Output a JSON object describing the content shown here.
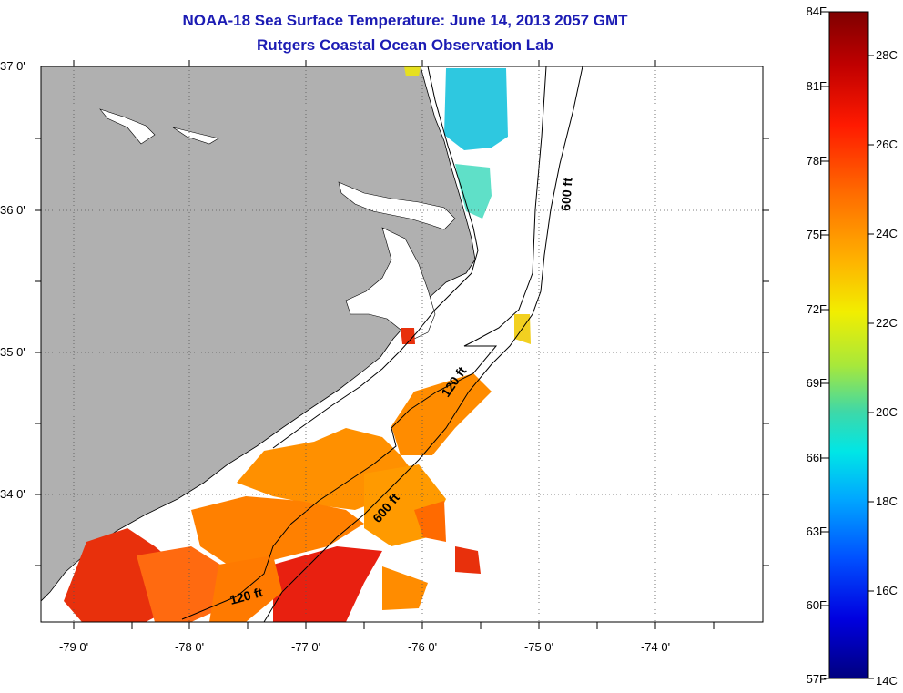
{
  "title": "NOAA-18 Sea Surface Temperature:  June 14, 2013 2057 GMT",
  "subtitle": "Rutgers Coastal Ocean Observation Lab",
  "axes": {
    "lat_labels": [
      "37 0'",
      "36 0'",
      "35 0'",
      "34 0'"
    ],
    "lon_labels": [
      "-79 0'",
      "-78 0'",
      "-77 0'",
      "-76 0'",
      "-75 0'",
      "-74 0'"
    ]
  },
  "contours": {
    "shelf_120": "120 ft",
    "slope_600": "600 ft"
  },
  "colorbar": {
    "fahrenheit": [
      "84F",
      "81F",
      "78F",
      "75F",
      "72F",
      "69F",
      "66F",
      "63F",
      "60F",
      "57F"
    ],
    "celsius": [
      "28C",
      "26C",
      "24C",
      "22C",
      "20C",
      "18C",
      "16C",
      "14C"
    ],
    "colors": [
      "#7f0000",
      "#c00000",
      "#ff1a00",
      "#ff6a00",
      "#ffb000",
      "#f2ee00",
      "#a8e83a",
      "#3ed8a8",
      "#00e6e6",
      "#00a8ff",
      "#0050ff",
      "#0000e0",
      "#00007f"
    ]
  },
  "colors": {
    "land": "#b0b0b0",
    "title": "#1c1cb4",
    "sst_warm": "#ff8c00",
    "sst_hot": "#e8300c",
    "sst_cool": "#2ec8e0"
  },
  "chart_data": {
    "type": "map",
    "lat_range": [
      33.15,
      37.0
    ],
    "lon_range": [
      -79.25,
      -73.0
    ],
    "grid": true,
    "temperature_range_F": [
      57,
      84
    ],
    "temperature_range_C": [
      14,
      29
    ]
  }
}
